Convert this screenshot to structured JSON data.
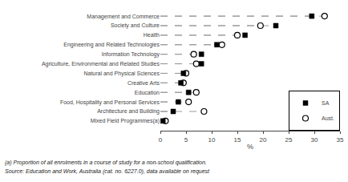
{
  "chart_data": {
    "type": "dot",
    "orientation": "horizontal",
    "categories": [
      "Management and Commerce",
      "Society and Culture",
      "Health",
      "Engineering and Related Technologies",
      "Information Technology",
      "Agriculture, Environmental and Related Studies",
      "Natural and Physical Sciences",
      "Creative Arts",
      "Education",
      "Food, Hospitality and Personal Services",
      "Architecture and Building",
      "Mixed Field Programmes(a)"
    ],
    "series": [
      {
        "name": "SA",
        "color": "#000000",
        "marker": "square",
        "values": [
          29.5,
          22.5,
          16.5,
          11.0,
          8.0,
          8.0,
          4.5,
          4.0,
          5.5,
          3.5,
          2.5,
          0.5
        ]
      },
      {
        "name": "Aust.",
        "color": "#000000",
        "marker": "circle-open",
        "values": [
          32.0,
          19.5,
          15.0,
          12.0,
          6.5,
          7.0,
          5.0,
          4.5,
          7.0,
          5.5,
          8.5,
          1.0
        ]
      }
    ],
    "color": "#999999",
    "line_style": "dashed",
    "xlabel": "%",
    "xlim": [
      0,
      35
    ],
    "xticks": [
      0,
      5,
      10,
      15,
      20,
      25,
      30,
      35
    ],
    "grid": false,
    "legend": "lower right",
    "annotations": [
      "(a) Proportion of all enrolments in a course of study for a non-school qualification.",
      "Source: Education and Work, Australia (cat. no. 6227.0), data available on request"
    ]
  }
}
